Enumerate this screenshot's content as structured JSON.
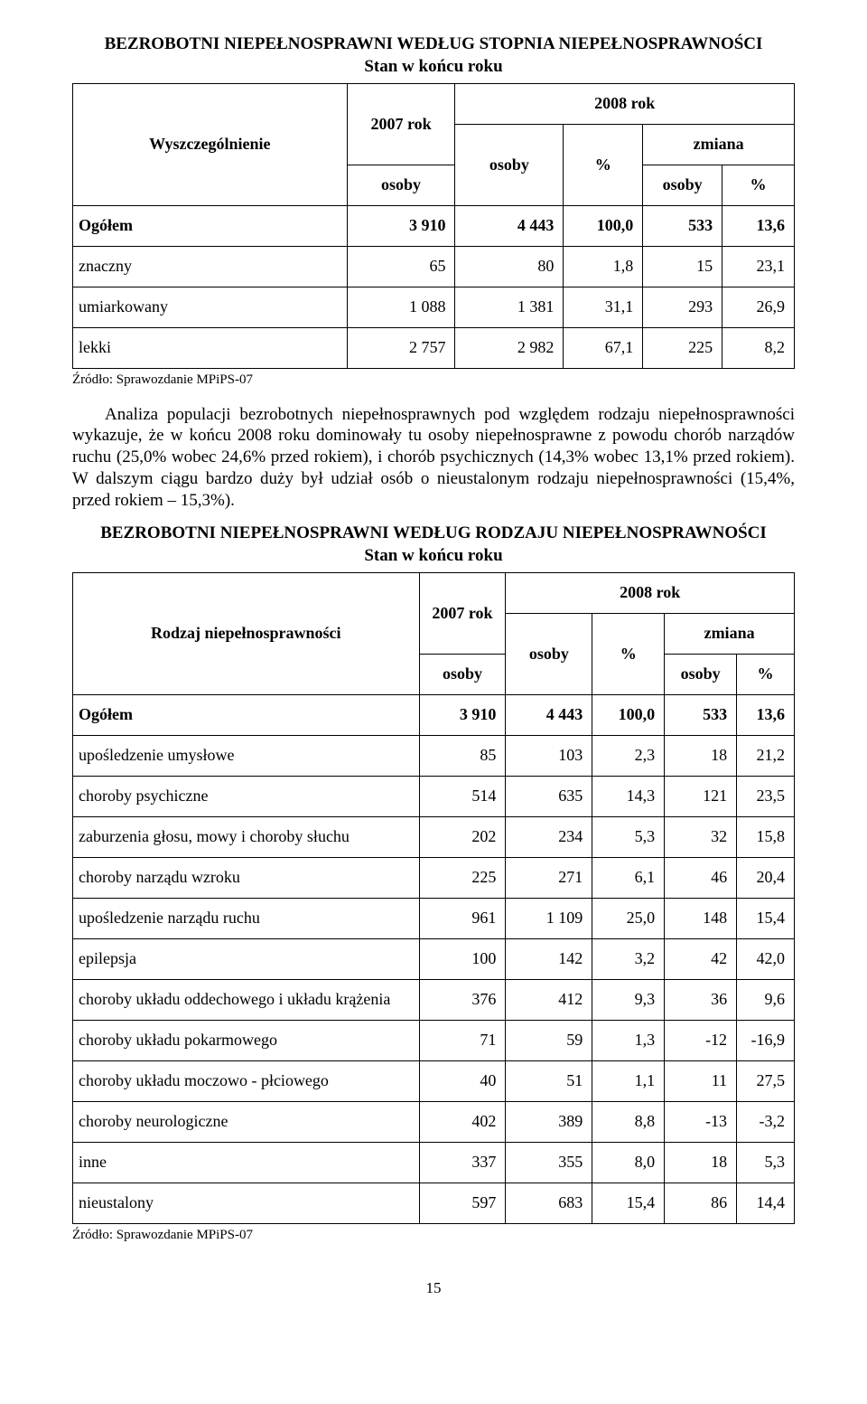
{
  "sec1": {
    "title": "BEZROBOTNI NIEPEŁNOSPRAWNI WEDŁUG STOPNIA NIEPEŁNOSPRAWNOŚCI",
    "subtitle": "Stan w końcu roku",
    "header": {
      "col1": "Wyszczególnienie",
      "col2": "2007 rok",
      "col3": "2008 rok",
      "osoby": "osoby",
      "pct": "%",
      "zmiana": "zmiana"
    },
    "rows": [
      {
        "label": "Ogółem",
        "v1": "3 910",
        "v2": "4 443",
        "v3": "100,0",
        "v4": "533",
        "v5": "13,6",
        "bold": true
      },
      {
        "label": "znaczny",
        "v1": "65",
        "v2": "80",
        "v3": "1,8",
        "v4": "15",
        "v5": "23,1"
      },
      {
        "label": "umiarkowany",
        "v1": "1 088",
        "v2": "1 381",
        "v3": "31,1",
        "v4": "293",
        "v5": "26,9"
      },
      {
        "label": "lekki",
        "v1": "2 757",
        "v2": "2 982",
        "v3": "67,1",
        "v4": "225",
        "v5": "8,2"
      }
    ],
    "source": "Źródło: Sprawozdanie MPiPS-07"
  },
  "para1": "Analiza populacji bezrobotnych niepełnosprawnych pod względem rodzaju niepełnosprawności wykazuje, że w końcu 2008 roku dominowały tu osoby niepełnosprawne z powodu chorób narządów ruchu (25,0% wobec 24,6% przed rokiem), i chorób psychicznych (14,3% wobec 13,1% przed rokiem). W dalszym ciągu bardzo duży był udział osób o nieustalonym rodzaju niepełnosprawności (15,4%, przed rokiem – 15,3%).",
  "sec2": {
    "title": "BEZROBOTNI NIEPEŁNOSPRAWNI WEDŁUG RODZAJU NIEPEŁNOSPRAWNOŚCI",
    "subtitle": "Stan w końcu roku",
    "header": {
      "col1": "Rodzaj niepełnosprawności",
      "col2": "2007 rok",
      "col3": "2008 rok",
      "osoby": "osoby",
      "pct": "%",
      "zmiana": "zmiana"
    },
    "rows": [
      {
        "label": "Ogółem",
        "v1": "3 910",
        "v2": "4 443",
        "v3": "100,0",
        "v4": "533",
        "v5": "13,6",
        "bold": true
      },
      {
        "label": "upośledzenie umysłowe",
        "v1": "85",
        "v2": "103",
        "v3": "2,3",
        "v4": "18",
        "v5": "21,2"
      },
      {
        "label": "choroby psychiczne",
        "v1": "514",
        "v2": "635",
        "v3": "14,3",
        "v4": "121",
        "v5": "23,5"
      },
      {
        "label": "zaburzenia głosu, mowy i choroby słuchu",
        "v1": "202",
        "v2": "234",
        "v3": "5,3",
        "v4": "32",
        "v5": "15,8"
      },
      {
        "label": "choroby narządu wzroku",
        "v1": "225",
        "v2": "271",
        "v3": "6,1",
        "v4": "46",
        "v5": "20,4"
      },
      {
        "label": "upośledzenie narządu ruchu",
        "v1": "961",
        "v2": "1 109",
        "v3": "25,0",
        "v4": "148",
        "v5": "15,4"
      },
      {
        "label": "epilepsja",
        "v1": "100",
        "v2": "142",
        "v3": "3,2",
        "v4": "42",
        "v5": "42,0"
      },
      {
        "label": "choroby układu oddechowego i układu krążenia",
        "v1": "376",
        "v2": "412",
        "v3": "9,3",
        "v4": "36",
        "v5": "9,6"
      },
      {
        "label": "choroby układu pokarmowego",
        "v1": "71",
        "v2": "59",
        "v3": "1,3",
        "v4": "-12",
        "v5": "-16,9"
      },
      {
        "label": "choroby układu moczowo - płciowego",
        "v1": "40",
        "v2": "51",
        "v3": "1,1",
        "v4": "11",
        "v5": "27,5"
      },
      {
        "label": "choroby neurologiczne",
        "v1": "402",
        "v2": "389",
        "v3": "8,8",
        "v4": "-13",
        "v5": "-3,2"
      },
      {
        "label": "inne",
        "v1": "337",
        "v2": "355",
        "v3": "8,0",
        "v4": "18",
        "v5": "5,3"
      },
      {
        "label": "nieustalony",
        "v1": "597",
        "v2": "683",
        "v3": "15,4",
        "v4": "86",
        "v5": "14,4"
      }
    ],
    "source": "Źródło: Sprawozdanie MPiPS-07"
  },
  "page_number": "15"
}
